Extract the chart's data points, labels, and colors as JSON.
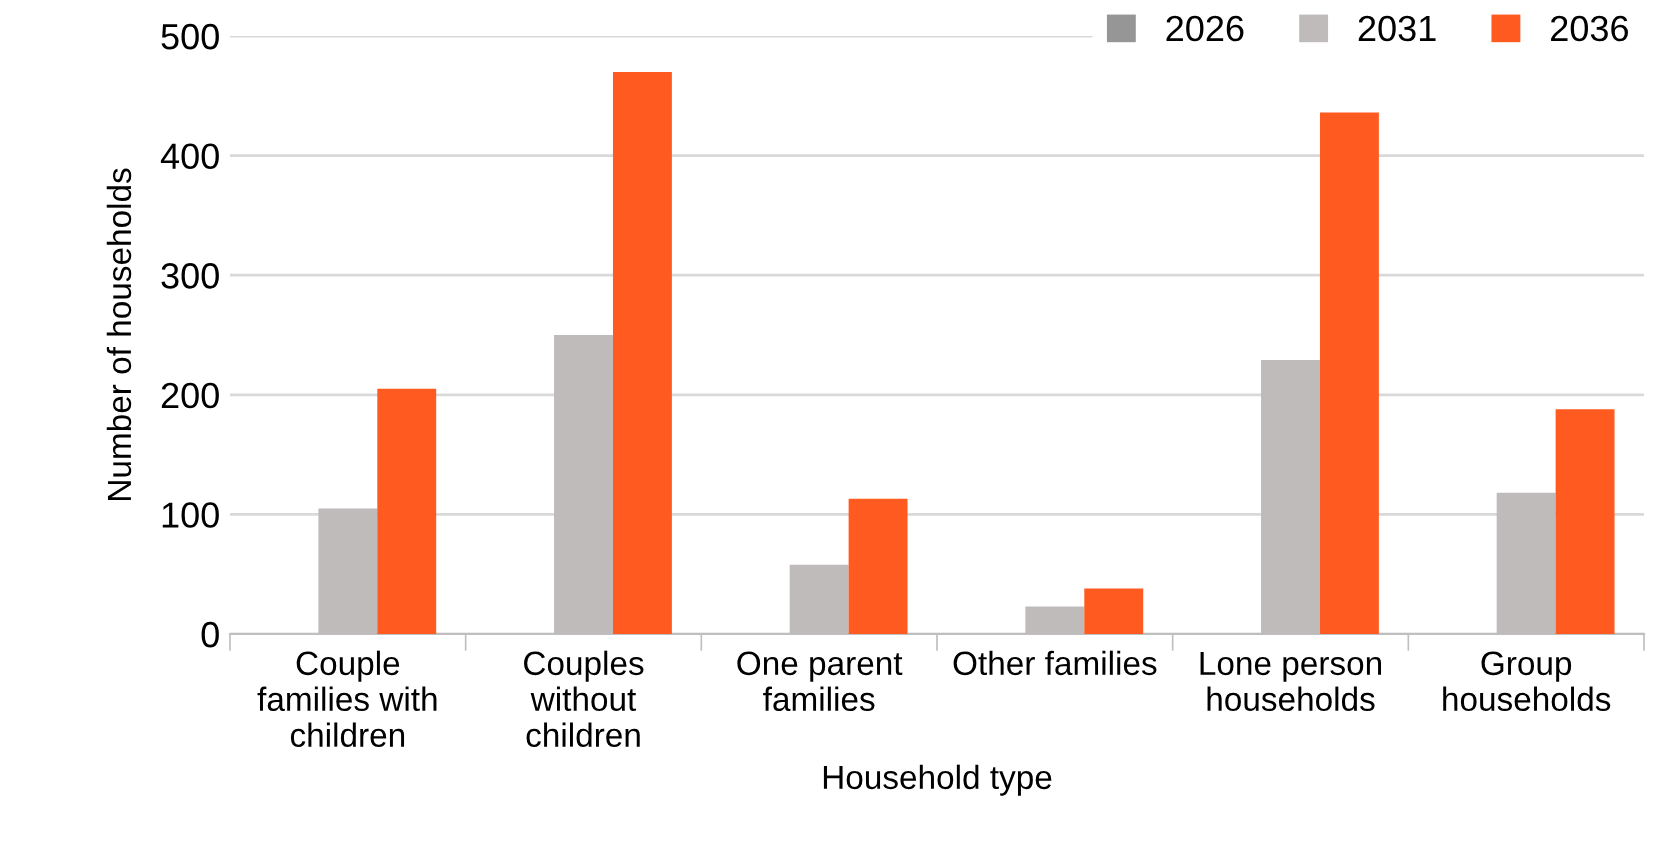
{
  "chart_data": {
    "type": "bar",
    "categories": [
      "Couple\nfamilies with\nchildren",
      "Couples\nwithout\nchildren",
      "One parent\nfamilies",
      "Other families",
      "Lone person\nhouseholds",
      "Group\nhouseholds"
    ],
    "series": [
      {
        "name": "2026",
        "color": "#969696",
        "values": [
          0,
          0,
          0,
          0,
          0,
          0
        ]
      },
      {
        "name": "2031",
        "color": "#bfbbbb",
        "values": [
          105,
          250,
          58,
          23,
          229,
          118
        ]
      },
      {
        "name": "2036",
        "color": "#ff5a1f",
        "values": [
          205,
          470,
          113,
          38,
          436,
          188
        ]
      }
    ],
    "xlabel": "Household type",
    "ylabel": "Number of households",
    "ylim": [
      0,
      500
    ],
    "yticks": [
      0,
      100,
      200,
      300,
      400,
      500
    ],
    "grid": "y",
    "legend": "top right"
  }
}
